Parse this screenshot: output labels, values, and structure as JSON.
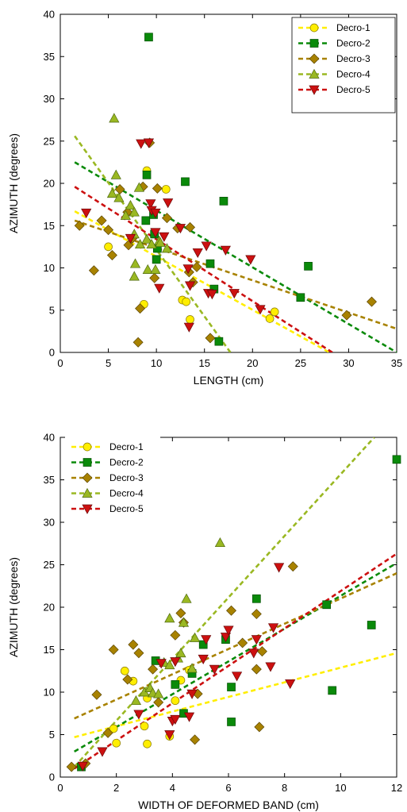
{
  "chart_data": [
    {
      "type": "scatter",
      "xlabel": "LENGTH (cm)",
      "ylabel": "AZIMUTH (degrees)",
      "xlim": [
        0,
        35
      ],
      "ylim": [
        0,
        40
      ],
      "xticks": [
        0,
        5,
        10,
        15,
        20,
        25,
        30,
        35
      ],
      "yticks": [
        0,
        5,
        10,
        15,
        20,
        25,
        30,
        35,
        40
      ],
      "grid": false,
      "legend_position": "top-right",
      "series": [
        {
          "name": "Decro-1",
          "marker": "circle",
          "color": "#ffee00",
          "points": [
            [
              5,
              12.5
            ],
            [
              8.7,
              5.7
            ],
            [
              9,
              21.5
            ],
            [
              11,
              19.3
            ],
            [
              12.7,
              6.2
            ],
            [
              13.1,
              6
            ],
            [
              13.5,
              3.9
            ],
            [
              21.8,
              4
            ],
            [
              22.3,
              4.8
            ]
          ],
          "trend": [
            [
              1.5,
              16.7
            ],
            [
              28,
              0
            ]
          ]
        },
        {
          "name": "Decro-2",
          "marker": "square",
          "color": "#0a8a0a",
          "points": [
            [
              9.2,
              37.3
            ],
            [
              9,
              21
            ],
            [
              13,
              20.2
            ],
            [
              17,
              17.9
            ],
            [
              8.9,
              15.6
            ],
            [
              9.7,
              16.3
            ],
            [
              9.8,
              14
            ],
            [
              10.1,
              12.3
            ],
            [
              10,
              11
            ],
            [
              15.6,
              10.5
            ],
            [
              16,
              7.5
            ],
            [
              16.5,
              1.3
            ],
            [
              25,
              6.5
            ],
            [
              25.8,
              10.2
            ]
          ],
          "trend": [
            [
              1.5,
              22.5
            ],
            [
              35,
              0
            ]
          ]
        },
        {
          "name": "Decro-3",
          "marker": "diamond",
          "color": "#a88200",
          "points": [
            [
              2,
              15
            ],
            [
              3.5,
              9.7
            ],
            [
              4.3,
              15.6
            ],
            [
              5,
              14.5
            ],
            [
              5.4,
              11.5
            ],
            [
              6.2,
              19.3
            ],
            [
              7,
              16.6
            ],
            [
              7.1,
              12.7
            ],
            [
              7.5,
              13.5
            ],
            [
              8.1,
              1.2
            ],
            [
              8.3,
              5.2
            ],
            [
              8.6,
              19.6
            ],
            [
              9.3,
              24.8
            ],
            [
              9.8,
              8.8
            ],
            [
              10.1,
              19.4
            ],
            [
              11.1,
              15.9
            ],
            [
              12.2,
              14.7
            ],
            [
              13.5,
              14.8
            ],
            [
              13.4,
              9.5
            ],
            [
              13.8,
              8.3
            ],
            [
              14.2,
              10.1
            ],
            [
              15.6,
              1.7
            ],
            [
              29.8,
              4.4
            ],
            [
              32.4,
              6
            ]
          ],
          "trend": [
            [
              1.5,
              15.6
            ],
            [
              35,
              2.8
            ]
          ]
        },
        {
          "name": "Decro-4",
          "marker": "triangle-up",
          "color": "#9ab822",
          "points": [
            [
              5.6,
              27.7
            ],
            [
              5.8,
              21
            ],
            [
              5.4,
              18.8
            ],
            [
              6.1,
              18.3
            ],
            [
              6.8,
              16.2
            ],
            [
              7.3,
              17.4
            ],
            [
              7.7,
              16.6
            ],
            [
              7.7,
              14
            ],
            [
              8.2,
              19.5
            ],
            [
              8.3,
              12.8
            ],
            [
              9,
              13.4
            ],
            [
              9.5,
              12.8
            ],
            [
              9.1,
              9.8
            ],
            [
              9.9,
              9.8
            ],
            [
              10.3,
              13.2
            ],
            [
              10.4,
              13
            ],
            [
              11.1,
              12.3
            ],
            [
              7.8,
              10.5
            ],
            [
              7.7,
              9
            ]
          ],
          "trend": [
            [
              1.5,
              25.6
            ],
            [
              17.7,
              0
            ]
          ]
        },
        {
          "name": "Decro-5",
          "marker": "triangle-down",
          "color": "#cc1010",
          "points": [
            [
              2.7,
              16.5
            ],
            [
              7.3,
              13.5
            ],
            [
              8.4,
              24.7
            ],
            [
              9.2,
              24.8
            ],
            [
              9.4,
              17.6
            ],
            [
              9.5,
              16.8
            ],
            [
              9.9,
              16.5
            ],
            [
              9.9,
              14.2
            ],
            [
              10.3,
              7.6
            ],
            [
              10.8,
              13.7
            ],
            [
              11.2,
              17.7
            ],
            [
              12.5,
              14.7
            ],
            [
              13.3,
              9.9
            ],
            [
              13.5,
              7.9
            ],
            [
              13.4,
              3
            ],
            [
              14.3,
              11.8
            ],
            [
              15.2,
              12.6
            ],
            [
              15.4,
              7
            ],
            [
              15.8,
              6.9
            ],
            [
              17.2,
              12.1
            ],
            [
              18.1,
              7
            ],
            [
              19.8,
              11
            ],
            [
              20.8,
              5.1
            ]
          ],
          "trend": [
            [
              1.5,
              19.6
            ],
            [
              28.3,
              0
            ]
          ]
        }
      ]
    },
    {
      "type": "scatter",
      "xlabel": "WIDTH OF DEFORMED BAND (cm)",
      "ylabel": "AZIMUTH (degrees)",
      "xlim": [
        0,
        12
      ],
      "ylim": [
        0,
        40
      ],
      "xticks": [
        0,
        2,
        4,
        6,
        8,
        10,
        12
      ],
      "yticks": [
        0,
        5,
        10,
        15,
        20,
        25,
        30,
        35,
        40
      ],
      "grid": false,
      "legend_position": "top-left",
      "series": [
        {
          "name": "Decro-1",
          "marker": "circle",
          "color": "#ffee00",
          "points": [
            [
              1.9,
              5.7
            ],
            [
              2,
              4
            ],
            [
              2.3,
              12.5
            ],
            [
              2.6,
              11.3
            ],
            [
              3,
              6
            ],
            [
              3.1,
              9.3
            ],
            [
              3.1,
              3.9
            ],
            [
              3.9,
              4.8
            ],
            [
              4.1,
              9
            ],
            [
              4.3,
              11.4
            ],
            [
              4.6,
              12.6
            ]
          ],
          "trend": [
            [
              0.5,
              4.7
            ],
            [
              12,
              14.6
            ]
          ]
        },
        {
          "name": "Decro-2",
          "marker": "square",
          "color": "#0a8a0a",
          "points": [
            [
              0.75,
              1.2
            ],
            [
              3.4,
              13.7
            ],
            [
              4.1,
              10.9
            ],
            [
              4.4,
              7.5
            ],
            [
              4.7,
              12.2
            ],
            [
              5.1,
              15.6
            ],
            [
              5.9,
              16.2
            ],
            [
              6.1,
              10.6
            ],
            [
              6.1,
              6.5
            ],
            [
              7,
              21
            ],
            [
              9.5,
              20.3
            ],
            [
              9.7,
              10.2
            ],
            [
              11.1,
              17.9
            ],
            [
              12,
              37.4
            ]
          ],
          "trend": [
            [
              0.5,
              3
            ],
            [
              12,
              25.2
            ]
          ]
        },
        {
          "name": "Decro-3",
          "marker": "diamond",
          "color": "#a88200",
          "points": [
            [
              0.4,
              1.2
            ],
            [
              0.9,
              1.6
            ],
            [
              1.3,
              9.7
            ],
            [
              1.7,
              5.2
            ],
            [
              1.9,
              15
            ],
            [
              2.4,
              11.5
            ],
            [
              2.6,
              15.6
            ],
            [
              2.8,
              14.6
            ],
            [
              3.3,
              12.7
            ],
            [
              3.5,
              8.8
            ],
            [
              4.1,
              16.7
            ],
            [
              4.3,
              19.3
            ],
            [
              4.4,
              18.2
            ],
            [
              4.8,
              4.4
            ],
            [
              4.9,
              9.8
            ],
            [
              6.1,
              19.6
            ],
            [
              6.5,
              15.8
            ],
            [
              7,
              12.7
            ],
            [
              7,
              19.2
            ],
            [
              7.1,
              5.9
            ],
            [
              7.2,
              14.8
            ],
            [
              8.3,
              24.8
            ]
          ],
          "trend": [
            [
              0.5,
              6.9
            ],
            [
              12,
              24
            ]
          ]
        },
        {
          "name": "Decro-4",
          "marker": "triangle-up",
          "color": "#9ab822",
          "points": [
            [
              2.7,
              9
            ],
            [
              3,
              10
            ],
            [
              3.2,
              10.5
            ],
            [
              3.3,
              9.9
            ],
            [
              3.5,
              9.8
            ],
            [
              3.7,
              13.5
            ],
            [
              3.9,
              18.7
            ],
            [
              3.9,
              13.2
            ],
            [
              4.2,
              14
            ],
            [
              4.3,
              14.6
            ],
            [
              4.5,
              21
            ],
            [
              4.4,
              18.2
            ],
            [
              4.7,
              12.8
            ],
            [
              4.8,
              16.4
            ],
            [
              5.7,
              27.6
            ]
          ],
          "trend": [
            [
              0.5,
              1.2
            ],
            [
              11.2,
              40
            ]
          ]
        },
        {
          "name": "Decro-5",
          "marker": "triangle-down",
          "color": "#cc1010",
          "points": [
            [
              0.8,
              1.3
            ],
            [
              1.5,
              3
            ],
            [
              2.8,
              7.4
            ],
            [
              3.6,
              13.4
            ],
            [
              3.9,
              5
            ],
            [
              4,
              6.6
            ],
            [
              4.1,
              6.8
            ],
            [
              4.1,
              13.6
            ],
            [
              4.6,
              7.1
            ],
            [
              4.7,
              9.8
            ],
            [
              5.1,
              13.9
            ],
            [
              5.2,
              16.2
            ],
            [
              5.5,
              12.7
            ],
            [
              5.9,
              16.5
            ],
            [
              6,
              17.3
            ],
            [
              6.3,
              11.9
            ],
            [
              6.9,
              14.6
            ],
            [
              7,
              16.2
            ],
            [
              7.5,
              13
            ],
            [
              7.6,
              17.6
            ],
            [
              7.8,
              24.7
            ],
            [
              8.2,
              11
            ]
          ],
          "trend": [
            [
              0.5,
              1
            ],
            [
              12,
              26.3
            ]
          ]
        }
      ]
    }
  ]
}
